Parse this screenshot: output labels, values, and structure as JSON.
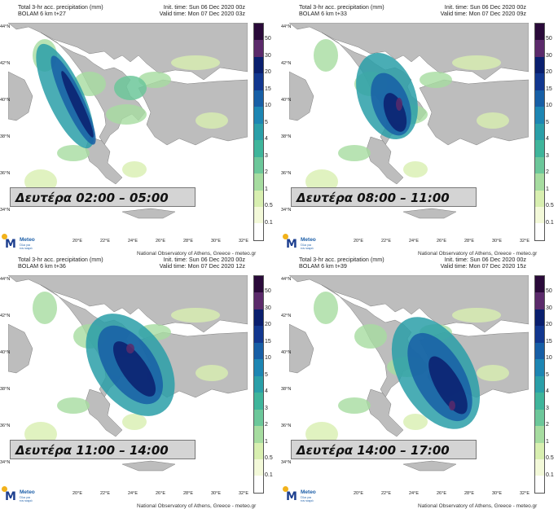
{
  "header_title": "Total 3-hr acc. precipitation (mm)",
  "init_time": "Init. time: Sun 06 Dec 2020 00z",
  "credit": "National Observatory of Athens, Greece - meteo.gr",
  "logo": {
    "name": "Meteo",
    "sub": "Όλα για τον καιρό",
    "dot_color": "#f2b21b",
    "brand_color": "#1d3f8f"
  },
  "lat_labels": [
    "44°N",
    "42°N",
    "40°N",
    "38°N",
    "36°N",
    "34°N"
  ],
  "lon_labels": [
    "20°E",
    "22°E",
    "24°E",
    "26°E",
    "28°E",
    "30°E",
    "32°E"
  ],
  "colorbar": {
    "labels": [
      "50",
      "30",
      "20",
      "15",
      "10",
      "5",
      "4",
      "3",
      "2",
      "1",
      "0.5",
      "0.1"
    ],
    "colors": [
      "#2a0a3a",
      "#5b2a6b",
      "#0a1f6e",
      "#12378f",
      "#175fa6",
      "#1d86b3",
      "#2a9fa8",
      "#3fb59b",
      "#6cc79a",
      "#a6dca0",
      "#d8efb0",
      "#f3f9d9",
      "#ffffff"
    ]
  },
  "panels": [
    {
      "model": "BOLAM 6 km t+27",
      "valid": "Valid time: Mon 07 Dec 2020 03z",
      "caption": "Δευτέρα 02:00 – 05:00"
    },
    {
      "model": "BOLAM 6 km t+33",
      "valid": "Valid time: Mon 07 Dec 2020 09z",
      "caption": "Δευτέρα 08:00 – 11:00"
    },
    {
      "model": "BOLAM 6 km t+36",
      "valid": "Valid time: Mon 07 Dec 2020 12z",
      "caption": "Δευτέρα 11:00 – 14:00"
    },
    {
      "model": "BOLAM 6 km t+39",
      "valid": "Valid time: Mon 07 Dec 2020 15z",
      "caption": "Δευτέρα 14:00 – 17:00"
    }
  ]
}
